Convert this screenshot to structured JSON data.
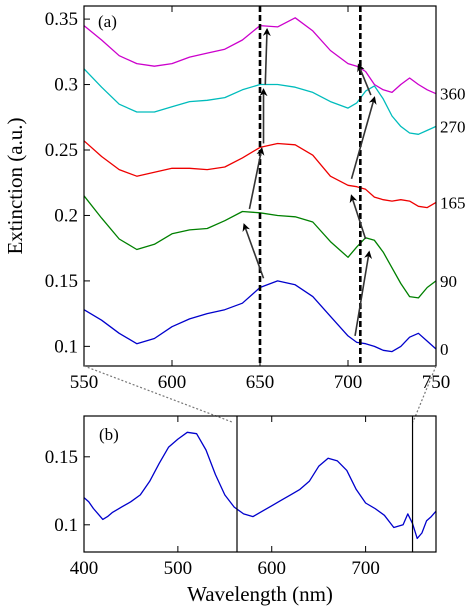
{
  "chart_data": [
    {
      "panel": "(a)",
      "type": "line",
      "xlabel": "",
      "ylabel": "Extinction (a.u.)",
      "xlim": [
        550,
        750
      ],
      "ylim": [
        0.085,
        0.36
      ],
      "xticks": [
        550,
        600,
        650,
        700,
        750
      ],
      "yticks": [
        0.1,
        0.15,
        0.2,
        0.25,
        0.3,
        0.35
      ],
      "ytick_labels": [
        "0.1",
        "0.15",
        "0.2",
        "0.25",
        "0.3",
        "0.35"
      ],
      "series": [
        {
          "label": "0",
          "color": "#0000cc",
          "x": [
            550,
            560,
            570,
            580,
            590,
            600,
            610,
            620,
            630,
            640,
            650,
            660,
            670,
            680,
            690,
            700,
            705,
            710,
            715,
            720,
            725,
            730,
            735,
            740,
            745,
            750
          ],
          "y": [
            0.128,
            0.12,
            0.11,
            0.102,
            0.106,
            0.115,
            0.121,
            0.125,
            0.128,
            0.133,
            0.145,
            0.15,
            0.147,
            0.138,
            0.123,
            0.108,
            0.103,
            0.102,
            0.1,
            0.097,
            0.096,
            0.1,
            0.107,
            0.11,
            0.104,
            0.098
          ]
        },
        {
          "label": "90",
          "color": "#008000",
          "x": [
            550,
            560,
            570,
            580,
            590,
            600,
            610,
            620,
            630,
            640,
            650,
            660,
            670,
            680,
            690,
            700,
            705,
            710,
            715,
            720,
            725,
            730,
            735,
            740,
            745,
            750
          ],
          "y": [
            0.215,
            0.198,
            0.182,
            0.174,
            0.178,
            0.186,
            0.189,
            0.19,
            0.196,
            0.203,
            0.202,
            0.2,
            0.199,
            0.195,
            0.18,
            0.168,
            0.176,
            0.183,
            0.181,
            0.172,
            0.16,
            0.148,
            0.138,
            0.137,
            0.145,
            0.15
          ]
        },
        {
          "label": "165",
          "color": "#ee0000",
          "x": [
            550,
            560,
            570,
            580,
            590,
            600,
            610,
            620,
            630,
            640,
            650,
            660,
            670,
            680,
            690,
            700,
            705,
            710,
            715,
            720,
            725,
            730,
            735,
            740,
            745,
            750
          ],
          "y": [
            0.257,
            0.245,
            0.235,
            0.23,
            0.233,
            0.236,
            0.236,
            0.235,
            0.237,
            0.244,
            0.252,
            0.255,
            0.254,
            0.246,
            0.23,
            0.223,
            0.222,
            0.22,
            0.214,
            0.212,
            0.211,
            0.212,
            0.211,
            0.207,
            0.206,
            0.21
          ]
        },
        {
          "label": "270",
          "color": "#00bcbc",
          "x": [
            550,
            560,
            570,
            580,
            590,
            600,
            610,
            620,
            630,
            640,
            650,
            660,
            670,
            680,
            690,
            700,
            705,
            710,
            715,
            720,
            725,
            730,
            735,
            740,
            745,
            750
          ],
          "y": [
            0.312,
            0.298,
            0.285,
            0.279,
            0.279,
            0.283,
            0.287,
            0.288,
            0.29,
            0.296,
            0.3,
            0.3,
            0.298,
            0.294,
            0.287,
            0.282,
            0.286,
            0.295,
            0.299,
            0.289,
            0.276,
            0.268,
            0.263,
            0.262,
            0.265,
            0.268
          ]
        },
        {
          "label": "360",
          "color": "#cc00cc",
          "x": [
            550,
            560,
            570,
            580,
            590,
            600,
            610,
            620,
            630,
            640,
            650,
            660,
            670,
            680,
            690,
            700,
            705,
            710,
            715,
            720,
            725,
            730,
            735,
            740,
            745,
            750
          ],
          "y": [
            0.345,
            0.334,
            0.322,
            0.316,
            0.314,
            0.316,
            0.321,
            0.324,
            0.327,
            0.334,
            0.345,
            0.344,
            0.351,
            0.341,
            0.326,
            0.316,
            0.314,
            0.31,
            0.3,
            0.296,
            0.294,
            0.3,
            0.305,
            0.3,
            0.296,
            0.293
          ]
        }
      ],
      "dashed_lines_x": [
        650,
        707
      ],
      "arrows": [
        {
          "from": [
            652,
            0.152
          ],
          "to": [
            641,
            0.193
          ]
        },
        {
          "from": [
            644,
            0.205
          ],
          "to": [
            651,
            0.251
          ]
        },
        {
          "from": [
            652,
            0.255
          ],
          "to": [
            652,
            0.296
          ]
        },
        {
          "from": [
            653,
            0.3
          ],
          "to": [
            654,
            0.342
          ]
        },
        {
          "from": [
            704,
            0.108
          ],
          "to": [
            712,
            0.172
          ]
        },
        {
          "from": [
            710,
            0.182
          ],
          "to": [
            702,
            0.215
          ]
        },
        {
          "from": [
            702,
            0.228
          ],
          "to": [
            715,
            0.29
          ]
        },
        {
          "from": [
            713,
            0.292
          ],
          "to": [
            706,
            0.315
          ]
        }
      ]
    },
    {
      "panel": "(b)",
      "type": "line",
      "xlabel": "Wavelength (nm)",
      "ylabel": "",
      "xlim": [
        400,
        775
      ],
      "ylim": [
        0.08,
        0.18
      ],
      "xticks": [
        400,
        500,
        600,
        700
      ],
      "yticks": [
        0.1,
        0.15
      ],
      "ytick_labels": [
        "0.1",
        "0.15"
      ],
      "vlines_x": [
        563,
        750
      ],
      "series": [
        {
          "color": "#0000cc",
          "x": [
            400,
            405,
            410,
            415,
            420,
            425,
            430,
            440,
            450,
            460,
            470,
            480,
            490,
            500,
            510,
            520,
            530,
            540,
            550,
            560,
            570,
            580,
            590,
            600,
            610,
            620,
            630,
            640,
            650,
            660,
            670,
            680,
            690,
            700,
            710,
            720,
            730,
            740,
            745,
            750,
            755,
            760,
            765,
            770,
            775
          ],
          "y": [
            0.12,
            0.117,
            0.112,
            0.108,
            0.104,
            0.106,
            0.109,
            0.113,
            0.117,
            0.122,
            0.132,
            0.145,
            0.157,
            0.163,
            0.168,
            0.167,
            0.155,
            0.137,
            0.122,
            0.113,
            0.108,
            0.106,
            0.11,
            0.114,
            0.118,
            0.122,
            0.126,
            0.132,
            0.143,
            0.149,
            0.147,
            0.14,
            0.126,
            0.116,
            0.112,
            0.107,
            0.098,
            0.1,
            0.108,
            0.101,
            0.09,
            0.094,
            0.103,
            0.106,
            0.11
          ]
        }
      ]
    }
  ]
}
